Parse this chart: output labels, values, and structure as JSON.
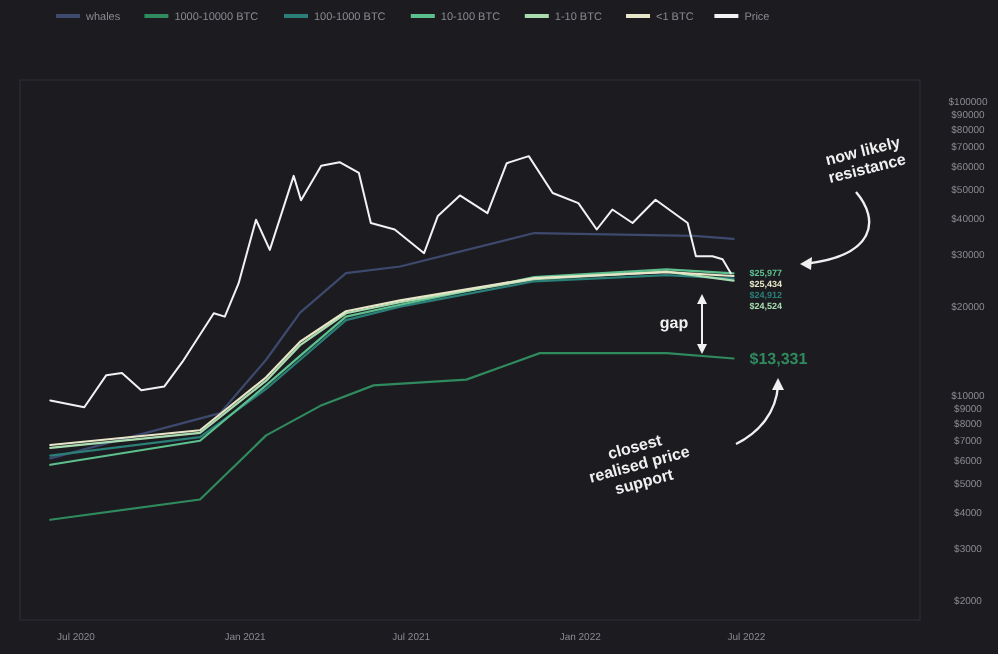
{
  "chart_data": {
    "type": "line",
    "log": "y",
    "legend": "top",
    "grid": false,
    "xlim": [
      "2020-05-01",
      "2023-01-06"
    ],
    "xticks": [
      {
        "value": "2020-07-01",
        "label": "Jul 2020"
      },
      {
        "value": "2021-01-01",
        "label": "Jan 2021"
      },
      {
        "value": "2021-07-01",
        "label": "Jul 2021"
      },
      {
        "value": "2022-01-01",
        "label": "Jan 2022"
      },
      {
        "value": "2022-07-01",
        "label": "Jul 2022"
      }
    ],
    "ylim": [
      1720,
      118000
    ],
    "yticks": [
      {
        "value": 2000,
        "label": "$2000"
      },
      {
        "value": 3000,
        "label": "$3000"
      },
      {
        "value": 4000,
        "label": "$4000"
      },
      {
        "value": 5000,
        "label": "$5000"
      },
      {
        "value": 6000,
        "label": "$6000"
      },
      {
        "value": 7000,
        "label": "$7000"
      },
      {
        "value": 8000,
        "label": "$8000"
      },
      {
        "value": 9000,
        "label": "$9000"
      },
      {
        "value": 10000,
        "label": "$10000"
      },
      {
        "value": 20000,
        "label": "$20000"
      },
      {
        "value": 30000,
        "label": "$30000"
      },
      {
        "value": 40000,
        "label": "$40000"
      },
      {
        "value": 50000,
        "label": "$50000"
      },
      {
        "value": 60000,
        "label": "$60000"
      },
      {
        "value": 70000,
        "label": "$70000"
      },
      {
        "value": 80000,
        "label": "$80000"
      },
      {
        "value": 90000,
        "label": "$90000"
      },
      {
        "value": 100000,
        "label": "$100000"
      }
    ],
    "series": [
      {
        "name": "whales",
        "color": "#3d4a6e",
        "x": [
          "2020-06-03",
          "2020-12-05",
          "2021-01-24",
          "2021-03-02",
          "2021-04-21",
          "2021-06-19",
          "2021-11-12",
          "2022-05-05",
          "2022-06-17"
        ],
        "values": [
          6100,
          8690,
          13200,
          19100,
          26000,
          27400,
          35600,
          34800,
          34000
        ]
      },
      {
        "name": "1000-10000 BTC",
        "color": "#2f8a5e",
        "x": [
          "2020-06-03",
          "2020-11-13",
          "2021-01-24",
          "2021-03-24",
          "2021-05-21",
          "2021-08-30",
          "2021-11-18",
          "2022-04-05",
          "2022-06-17"
        ],
        "values": [
          3770,
          4420,
          7300,
          9200,
          10800,
          11300,
          13900,
          13900,
          13331
        ]
      },
      {
        "name": "100-1000 BTC",
        "color": "#2a7f78",
        "x": [
          "2020-06-03",
          "2020-11-13",
          "2021-01-24",
          "2021-03-02",
          "2021-04-21",
          "2021-06-19",
          "2021-11-12",
          "2022-04-05",
          "2022-06-17"
        ],
        "values": [
          6230,
          7200,
          10500,
          13200,
          18000,
          20000,
          24400,
          25600,
          24912
        ]
      },
      {
        "name": "10-100 BTC",
        "color": "#5cc08e",
        "x": [
          "2020-06-03",
          "2020-11-13",
          "2021-01-24",
          "2021-03-02",
          "2021-04-21",
          "2021-06-19",
          "2021-11-12",
          "2022-04-05",
          "2022-06-17"
        ],
        "values": [
          5800,
          7000,
          10800,
          13600,
          18500,
          20300,
          25200,
          26800,
          25977
        ]
      },
      {
        "name": "1-10 BTC",
        "color": "#a8dcb0",
        "x": [
          "2020-06-03",
          "2020-11-13",
          "2021-01-24",
          "2021-03-02",
          "2021-04-21",
          "2021-06-19",
          "2021-11-12",
          "2022-04-05",
          "2022-06-17"
        ],
        "values": [
          6620,
          7450,
          11200,
          14800,
          19000,
          20700,
          24800,
          26300,
          24524
        ]
      },
      {
        "name": "<1 BTC",
        "color": "#e8e6c8",
        "x": [
          "2020-06-03",
          "2020-11-13",
          "2021-01-24",
          "2021-03-02",
          "2021-04-21",
          "2021-06-19",
          "2021-11-12",
          "2022-04-05",
          "2022-06-17"
        ],
        "values": [
          6770,
          7600,
          11500,
          15200,
          19300,
          21000,
          25000,
          26200,
          25434
        ]
      },
      {
        "name": "Price",
        "color": "#f2f2f2",
        "x": [
          "2020-06-03",
          "2020-07-10",
          "2020-08-03",
          "2020-08-20",
          "2020-09-10",
          "2020-10-05",
          "2020-10-25",
          "2020-11-28",
          "2020-12-10",
          "2020-12-25",
          "2021-01-13",
          "2021-01-28",
          "2021-02-23",
          "2021-03-03",
          "2021-03-25",
          "2021-04-14",
          "2021-05-05",
          "2021-05-18",
          "2021-06-13",
          "2021-07-15",
          "2021-07-30",
          "2021-08-23",
          "2021-09-22",
          "2021-10-13",
          "2021-11-06",
          "2021-12-02",
          "2021-12-30",
          "2022-01-19",
          "2022-02-05",
          "2022-02-27",
          "2022-03-24",
          "2022-04-28",
          "2022-05-07",
          "2022-05-25",
          "2022-06-05",
          "2022-06-14"
        ],
        "values": [
          9600,
          9100,
          11700,
          11900,
          10400,
          10700,
          13000,
          19000,
          18500,
          24000,
          39500,
          31200,
          55700,
          46000,
          60300,
          62000,
          57000,
          38500,
          36600,
          30400,
          40700,
          47800,
          41600,
          61500,
          65000,
          48700,
          45000,
          36600,
          42800,
          38500,
          46200,
          38500,
          29700,
          29700,
          29000,
          26000
        ]
      }
    ],
    "annotations": [
      "now likely resistance",
      "gap",
      "closest realised price support",
      {
        "text": "$25,977",
        "x": "2022-06-17",
        "y": 25977
      },
      {
        "text": "$25,434",
        "x": "2022-06-17",
        "y": 25434
      },
      {
        "text": "$24,524",
        "x": "2022-06-17",
        "y": 24524
      },
      {
        "text": "$24,912",
        "x": "2022-06-17",
        "y": 24912
      },
      {
        "text": "$13,331",
        "x": "2022-06-17",
        "y": 13331
      }
    ]
  }
}
